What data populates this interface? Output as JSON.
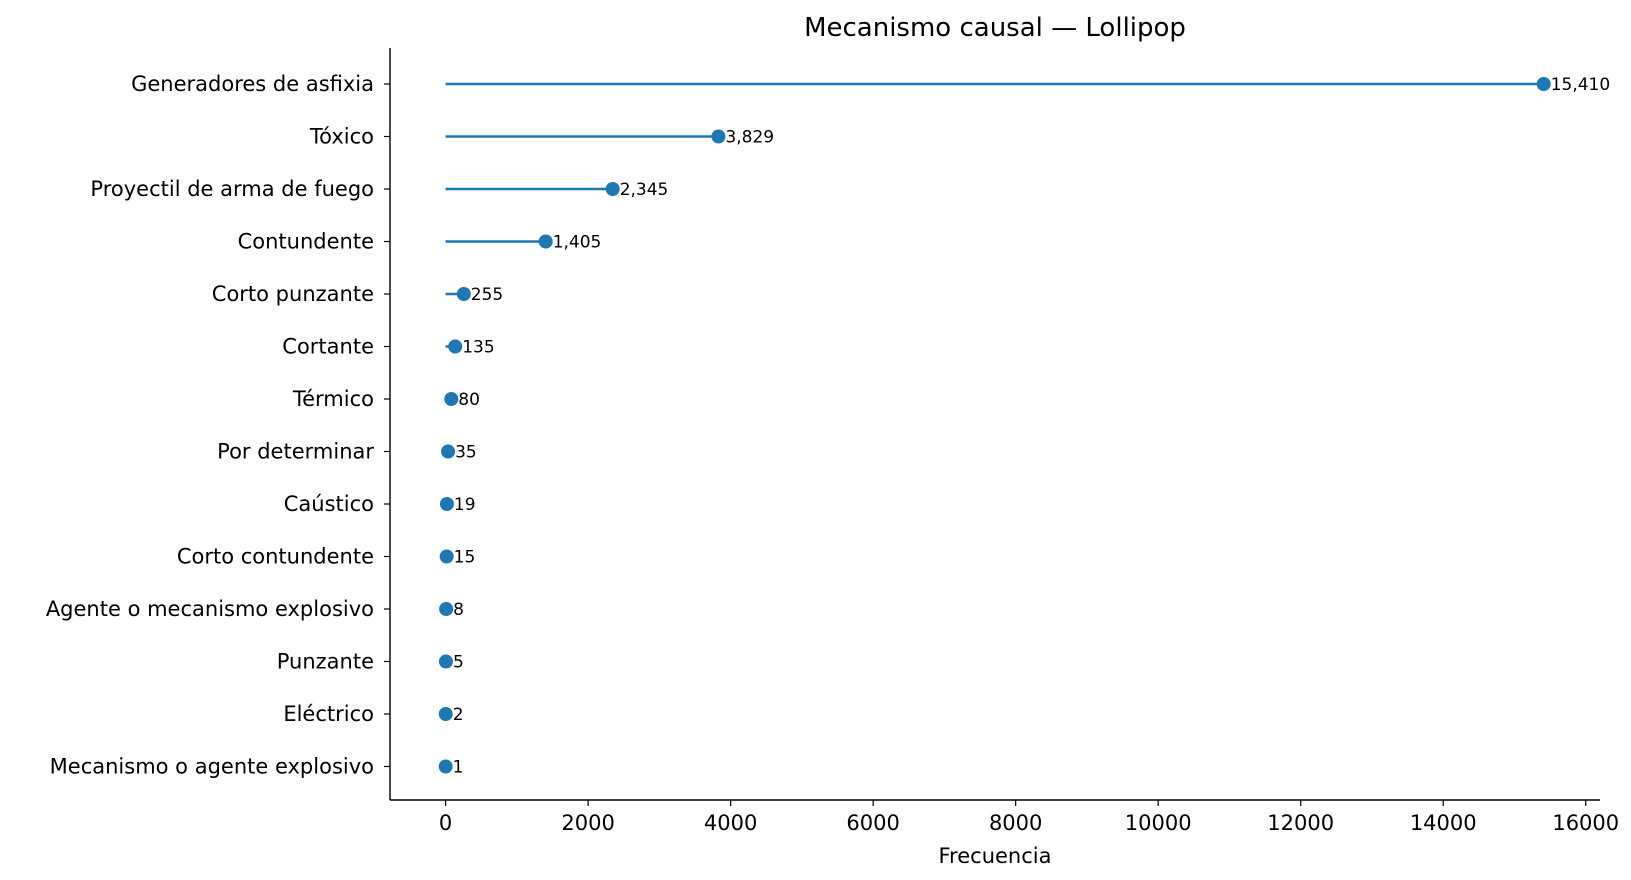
{
  "chart_data": {
    "type": "lollipop",
    "title": "Mecanismo causal — Lollipop",
    "xlabel": "Frecuencia",
    "ylabel": "",
    "xlim": [
      -780,
      16200
    ],
    "xticks": [
      0,
      2000,
      4000,
      6000,
      8000,
      10000,
      12000,
      14000,
      16000
    ],
    "xtick_labels": [
      "0",
      "2000",
      "4000",
      "6000",
      "8000",
      "10000",
      "12000",
      "14000",
      "16000"
    ],
    "categories": [
      "Generadores de asfixia",
      "Tóxico",
      "Proyectil de arma de fuego",
      "Contundente",
      "Corto punzante",
      "Cortante",
      "Térmico",
      "Por determinar",
      "Caústico",
      "Corto contundente",
      "Agente o mecanismo explosivo",
      "Punzante",
      "Eléctrico",
      "Mecanismo o agente explosivo"
    ],
    "values": [
      15410,
      3829,
      2345,
      1405,
      255,
      135,
      80,
      35,
      19,
      15,
      8,
      5,
      2,
      1
    ],
    "value_labels": [
      "15,410",
      "3,829",
      "2,345",
      "1,405",
      "255",
      "135",
      "80",
      "35",
      "19",
      "15",
      "8",
      "5",
      "2",
      "1"
    ],
    "color": "#1f77b4",
    "grid": false,
    "legend": "none"
  }
}
